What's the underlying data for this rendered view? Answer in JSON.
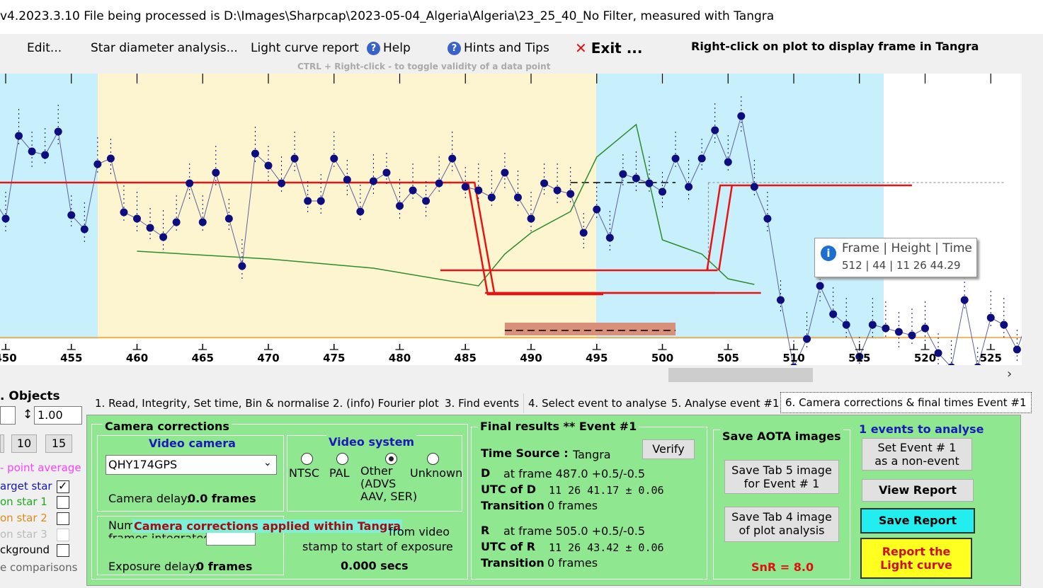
{
  "window": {
    "title": "v4.2023.3.10     File being processed is D:\\Images\\Sharpcap\\2023-05-04_Algeria\\Algeria\\23_25_40_No Filter, measured with Tangra"
  },
  "menu": {
    "edit": "Edit...",
    "star_diameter": "Star diameter analysis...",
    "light_curve_report": "Light curve report",
    "help": "Help",
    "hints": "Hints and Tips",
    "exit": "Exit ...",
    "right_click_note": "Right-click on plot to display frame in Tangra",
    "ctrl_hint": "CTRL + Right-click  -  to toggle validity of a data point"
  },
  "plot": {
    "x_ticks": [
      "450",
      "455",
      "460",
      "465",
      "470",
      "475",
      "480",
      "485",
      "490",
      "495",
      "500",
      "505",
      "510",
      "515",
      "520",
      "525"
    ],
    "tooltip_header": "Frame | Height | Time",
    "tooltip_value": "512 | 44 | 11 26 44.29",
    "colors": {
      "baseline_region": "#c8f0fc",
      "event_region": "#fdf5cf",
      "model": "#e81414",
      "data": "#0d0d80",
      "comparison": "#2e8b2e",
      "orange_line": "#f0a030",
      "bottom_box": "#d8907a"
    }
  },
  "left_panel": {
    "objects_label": ". Objects",
    "scale_value": "1.00",
    "btn_10": "10",
    "btn_15": "15",
    "point_average": "- point average",
    "target_star": "arget star",
    "comp1": "on star 1",
    "comp2": "on star 2",
    "comp3": "on star 3",
    "background": "ckground",
    "comparisons": "e comparisons"
  },
  "tabs": [
    "1.  Read, Integrity, Set time, Bin & normalise",
    "2. (info)  Fourier plot",
    "3. Find events",
    "4. Select event to analyse",
    "5. Analyse event #1",
    "6. Camera corrections & final times Event #1"
  ],
  "camera": {
    "title": "Camera corrections",
    "video_camera_title": "Video camera",
    "camera_value": "QHY174GPS",
    "camera_delay_label": "Camera delay:",
    "camera_delay_value": "0.0 frames",
    "video_system_title": "Video system",
    "radio_ntsc": "NTSC",
    "radio_pal": "PAL",
    "radio_other": "Other\n(ADVS\nAAV, SER)",
    "radio_unknown": "Unknown",
    "applied_note": "Camera corrections applied within Tangra",
    "frames_integrated_1": "Num",
    "frames_integrated_2": "frames integrated",
    "from_video": "from video",
    "stamp_to_start": "stamp to start of exposure",
    "exposure_secs": "0.000 secs",
    "exposure_delay_label": "Exposure delay:",
    "exposure_delay_value": "0 frames"
  },
  "results": {
    "title": "Final results  **  Event #1",
    "verify": "Verify",
    "time_source_label": "Time Source :",
    "time_source_value": "Tangra",
    "d_label": "D",
    "d_frame": "at frame 487.0  +0.5/-0.5",
    "utc_d_label": "UTC of D",
    "utc_d_value": "11 26 41.17   ± 0.06",
    "transition_label": "Transition",
    "transition_d": "0 frames",
    "r_label": "R",
    "r_frame": "at frame 505.0  +0.5/-0.5",
    "utc_r_label": "UTC of R",
    "utc_r_value": "11 26 43.42   ± 0.06",
    "transition_r": "0 frames"
  },
  "aota": {
    "title": "Save AOTA images",
    "tab5_btn": "Save Tab 5 image\nfor Event # 1",
    "tab4_btn": "Save Tab 4 image\nof plot analysis",
    "snr": "SnR = 8.0"
  },
  "events": {
    "count": "1  events to analyse",
    "set_non_event": "Set Event # 1\nas a non-event",
    "view_report": "View Report",
    "save_report": "Save Report",
    "report_light_curve": "Report the\nLight curve"
  }
}
